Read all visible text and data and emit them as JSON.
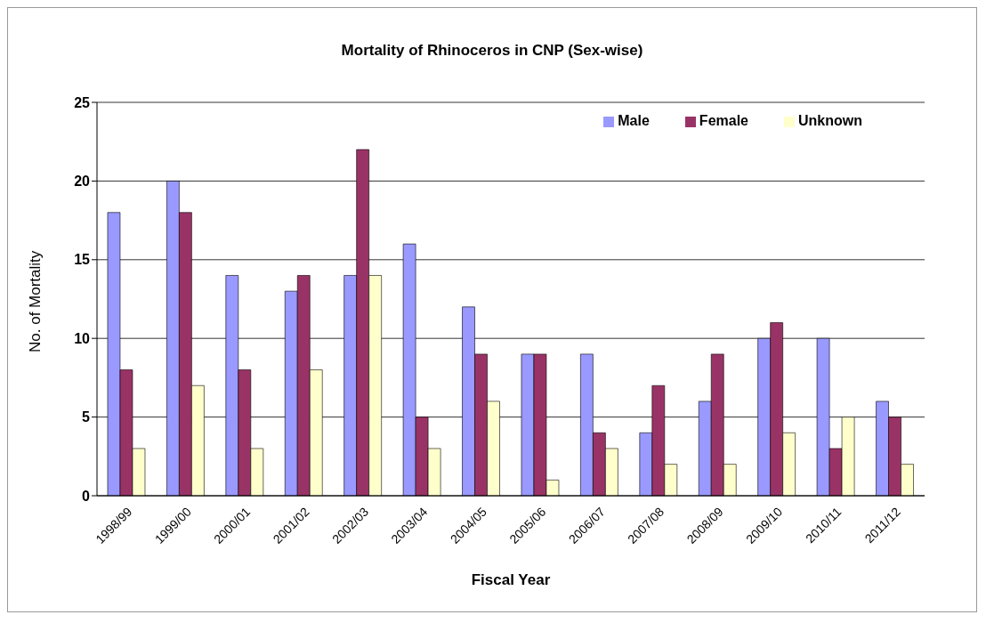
{
  "chart_data": {
    "type": "bar",
    "title": "Mortality of Rhinoceros in CNP (Sex-wise)",
    "xlabel": "Fiscal Year",
    "ylabel": "No. of Mortality",
    "categories": [
      "1998/99",
      "1999/00",
      "2000/01",
      "2001/02",
      "2002/03",
      "2003/04",
      "2004/05",
      "2005/06",
      "2006/07",
      "2007/08",
      "2008/09",
      "2009/10",
      "2010/11",
      "2011/12"
    ],
    "series": [
      {
        "name": "Male",
        "color": "#9999ff",
        "values": [
          18,
          20,
          14,
          13,
          14,
          16,
          12,
          9,
          9,
          4,
          6,
          10,
          10,
          6
        ]
      },
      {
        "name": "Female",
        "color": "#993366",
        "values": [
          8,
          18,
          8,
          14,
          22,
          5,
          9,
          9,
          4,
          7,
          9,
          11,
          3,
          5
        ]
      },
      {
        "name": "Unknown",
        "color": "#ffffcc",
        "values": [
          3,
          7,
          3,
          8,
          14,
          3,
          6,
          1,
          3,
          2,
          2,
          4,
          5,
          2
        ]
      }
    ],
    "ylim": [
      0,
      25
    ],
    "yticks": [
      0,
      5,
      10,
      15,
      20,
      25
    ],
    "grid": "y",
    "legend": "top right"
  }
}
